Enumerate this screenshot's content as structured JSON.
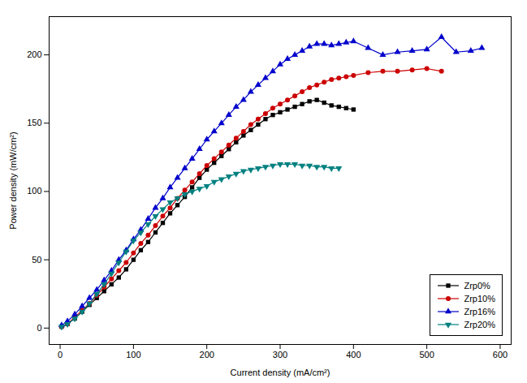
{
  "chart_data": {
    "type": "line",
    "xlabel": "Current density (mA/cm²)",
    "ylabel": "Power density (mW/cm²)",
    "xlim": [
      -15,
      615
    ],
    "ylim": [
      -12,
      228
    ],
    "xticks": [
      0,
      100,
      200,
      300,
      400,
      500,
      600
    ],
    "yticks": [
      0,
      50,
      100,
      150,
      200
    ],
    "grid": false,
    "legend": "lower right",
    "series": [
      {
        "name": "Zrp0%",
        "color": "#000000",
        "marker": "square",
        "line_style": "solid",
        "x": [
          2,
          10,
          20,
          30,
          40,
          50,
          60,
          70,
          80,
          90,
          100,
          110,
          120,
          130,
          140,
          150,
          160,
          170,
          180,
          190,
          200,
          210,
          220,
          230,
          240,
          250,
          260,
          270,
          280,
          290,
          300,
          310,
          320,
          330,
          340,
          350,
          360,
          370,
          380,
          390,
          400
        ],
        "values": [
          1,
          3,
          7,
          12,
          17,
          22,
          27,
          32,
          37,
          43,
          50,
          57,
          63,
          70,
          77,
          84,
          90,
          96,
          103,
          110,
          116,
          121,
          126,
          131,
          136,
          141,
          145,
          149,
          153,
          156,
          158,
          160,
          162,
          164,
          166,
          167,
          165,
          163,
          162,
          161,
          160
        ]
      },
      {
        "name": "Zrp10%",
        "color": "#cc0000",
        "marker": "circle",
        "line_style": "solid",
        "x": [
          2,
          10,
          20,
          30,
          40,
          50,
          60,
          70,
          80,
          90,
          100,
          110,
          120,
          130,
          140,
          150,
          160,
          170,
          180,
          190,
          200,
          210,
          220,
          230,
          240,
          250,
          260,
          270,
          280,
          290,
          300,
          310,
          320,
          330,
          340,
          350,
          360,
          370,
          380,
          390,
          400,
          420,
          440,
          460,
          480,
          500,
          520
        ],
        "values": [
          1,
          3,
          8,
          13,
          18,
          24,
          30,
          36,
          42,
          48,
          55,
          62,
          68,
          75,
          82,
          88,
          95,
          101,
          107,
          113,
          119,
          124,
          129,
          134,
          139,
          144,
          149,
          153,
          157,
          161,
          164,
          167,
          170,
          173,
          176,
          178,
          180,
          182,
          183,
          184,
          185,
          187,
          188,
          188,
          189,
          190,
          188
        ]
      },
      {
        "name": "Zrp16%",
        "color": "#0000cc",
        "marker": "triangle-up",
        "line_style": "solid",
        "x": [
          2,
          10,
          20,
          30,
          40,
          50,
          60,
          70,
          80,
          90,
          100,
          110,
          120,
          130,
          140,
          150,
          160,
          170,
          180,
          190,
          200,
          210,
          220,
          230,
          240,
          250,
          260,
          270,
          280,
          290,
          300,
          310,
          320,
          330,
          340,
          350,
          360,
          370,
          380,
          390,
          400,
          420,
          440,
          460,
          480,
          500,
          520,
          540,
          560,
          575
        ],
        "values": [
          2,
          5,
          10,
          16,
          22,
          28,
          35,
          42,
          50,
          57,
          65,
          72,
          80,
          88,
          95,
          103,
          110,
          117,
          124,
          131,
          138,
          144,
          150,
          156,
          162,
          167,
          173,
          178,
          183,
          188,
          193,
          197,
          200,
          203,
          206,
          208,
          208,
          207,
          208,
          209,
          210,
          205,
          200,
          202,
          203,
          204,
          213,
          202,
          203,
          205
        ]
      },
      {
        "name": "Zrp20%",
        "color": "#008080",
        "marker": "triangle-down",
        "line_style": "solid",
        "x": [
          2,
          10,
          20,
          30,
          40,
          50,
          60,
          70,
          80,
          90,
          100,
          110,
          120,
          130,
          140,
          150,
          160,
          170,
          180,
          190,
          200,
          210,
          220,
          230,
          240,
          250,
          260,
          270,
          280,
          290,
          300,
          310,
          320,
          330,
          340,
          350,
          360,
          370,
          380
        ],
        "values": [
          1,
          3,
          7,
          12,
          18,
          25,
          32,
          40,
          48,
          56,
          64,
          70,
          76,
          82,
          87,
          92,
          95,
          98,
          100,
          102,
          104,
          107,
          109,
          111,
          113,
          115,
          116,
          117,
          118,
          119,
          120,
          120,
          120,
          119,
          119,
          118,
          118,
          117,
          117
        ]
      }
    ]
  }
}
